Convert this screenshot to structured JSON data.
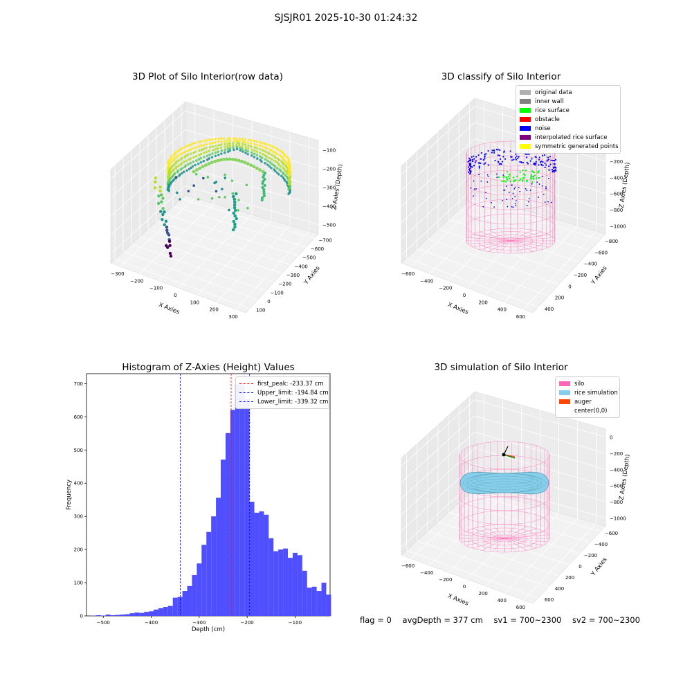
{
  "figure": {
    "suptitle": "SJSJR01 2025-10-30 01:24:32"
  },
  "status": {
    "flag": "flag = 0",
    "avg_depth": "avgDepth = 377 cm",
    "sv1": "sv1 = 700~2300",
    "sv2": "sv2 = 700~2300"
  },
  "colors": {
    "original_data": "#b0b0b0",
    "inner_wall": "#808080",
    "rice_surface": "#00ff00",
    "obstacle": "#ff0000",
    "noise": "#0000ff",
    "interpolated_rice_surface": "#800080",
    "symmetric_generated_points": "#ffff00",
    "silo": "#ff69b4",
    "rice_simulation": "#87ceeb",
    "auger": "#ff4500",
    "hist_bars": "#4b4bff"
  },
  "panels": {
    "raw": {
      "title": "3D Plot of Silo Interior(row data)",
      "xlabel": "X Axies",
      "ylabel": "Y Axies",
      "zlabel": "Z Axies (Depth)",
      "xticks": [
        "−300",
        "−200",
        "−100",
        "0",
        "100",
        "200",
        "300"
      ],
      "yticks": [
        "100",
        "0",
        "−100",
        "−200",
        "−300",
        "−400",
        "−500",
        "−600",
        "−700"
      ],
      "zticks": [
        "−100",
        "−200",
        "−300",
        "−400",
        "−500"
      ]
    },
    "classify": {
      "title": "3D classify of Silo Interior",
      "xlabel": "X Axies",
      "ylabel": "Y Axies",
      "zlabel": "Z Axies (Depth)",
      "xticks": [
        "−600",
        "−400",
        "−200",
        "0",
        "200",
        "400",
        "600"
      ],
      "yticks": [
        "400",
        "200",
        "0",
        "−200",
        "−400",
        "−600",
        "−800"
      ],
      "zticks": [
        "0",
        "−200",
        "−400",
        "−600",
        "−800",
        "−1000"
      ],
      "legend": [
        "original data",
        "inner wall",
        "rice surface",
        "obstacle",
        "noise",
        "interpolated rice surface",
        "symmetric generated points"
      ]
    },
    "simulation": {
      "title": "3D simulation of Silo Interior",
      "xlabel": "X Axies",
      "ylabel": "Y Axies",
      "zlabel": "Z Axies (Depth)",
      "xticks": [
        "−600",
        "−400",
        "−200",
        "0",
        "200",
        "400",
        "600"
      ],
      "yticks": [
        "600",
        "400",
        "200",
        "0",
        "−200",
        "−400",
        "−600"
      ],
      "zticks": [
        "0",
        "−200",
        "−400",
        "−600",
        "−800",
        "−1000"
      ],
      "legend": [
        "silo",
        "rice simulation",
        "auger",
        "center(0,0)"
      ]
    }
  },
  "chart_data": [
    {
      "type": "bar",
      "title": "Histogram of Z-Axies (Height) Values",
      "xlabel": "Depth (cm)",
      "ylabel": "Frequency",
      "xlim": [
        -535,
        -27
      ],
      "ylim": [
        0,
        730
      ],
      "xticks": [
        -500,
        -400,
        -300,
        -200,
        -100
      ],
      "yticks": [
        0,
        100,
        200,
        300,
        400,
        500,
        600,
        700
      ],
      "bin_width": 10,
      "bins_start": [
        -525,
        -515,
        -505,
        -495,
        -485,
        -475,
        -465,
        -455,
        -445,
        -435,
        -425,
        -415,
        -405,
        -395,
        -385,
        -375,
        -365,
        -355,
        -345,
        -335,
        -325,
        -315,
        -305,
        -295,
        -285,
        -275,
        -265,
        -255,
        -245,
        -235,
        -225,
        -215,
        -205,
        -195,
        -185,
        -175,
        -165,
        -155,
        -145,
        -135,
        -125,
        -115,
        -105,
        -95,
        -85,
        -75,
        -65,
        -55,
        -45,
        -35
      ],
      "values": [
        1,
        2,
        1,
        4,
        2,
        3,
        4,
        5,
        8,
        10,
        9,
        12,
        14,
        19,
        23,
        27,
        30,
        55,
        57,
        75,
        90,
        123,
        158,
        214,
        253,
        300,
        356,
        471,
        551,
        621,
        697,
        694,
        653,
        344,
        311,
        315,
        305,
        234,
        195,
        200,
        203,
        175,
        190,
        183,
        136,
        85,
        88,
        75,
        100,
        64
      ],
      "reference_lines": [
        {
          "name": "first_peak: -233.37 cm",
          "x": -233.37,
          "color": "#ff0000"
        },
        {
          "name": "Upper_limit: -194.84 cm",
          "x": -194.84,
          "color": "#0000ff"
        },
        {
          "name": "Lower_limit: -339.32 cm",
          "x": -339.32,
          "color": "#0000ff"
        }
      ],
      "legend_position": "top-right"
    }
  ]
}
